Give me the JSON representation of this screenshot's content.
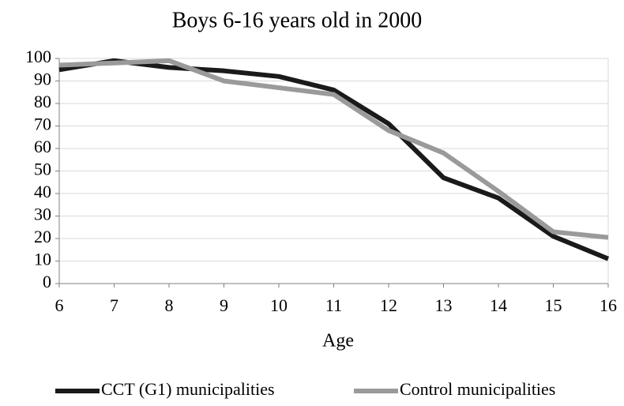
{
  "chart_data": {
    "type": "line",
    "title": "Boys 6-16 years old in 2000",
    "x_label": "Age",
    "x": [
      6,
      7,
      8,
      9,
      10,
      11,
      12,
      13,
      14,
      15,
      16
    ],
    "xlim": [
      6,
      16
    ],
    "xticks": [
      6,
      7,
      8,
      9,
      10,
      11,
      12,
      13,
      14,
      15,
      16
    ],
    "ylim": [
      0,
      100
    ],
    "yticks": [
      0,
      10,
      20,
      30,
      40,
      50,
      60,
      70,
      80,
      90,
      100
    ],
    "grid": true,
    "legend": "bottom",
    "series": [
      {
        "name": "CCT (G1) municipalities",
        "color": "#1a1a1a",
        "values": [
          95,
          99,
          96,
          94.5,
          92,
          86,
          71,
          47,
          38,
          21,
          11
        ]
      },
      {
        "name": "Control municipalities",
        "color": "#9a9a9a",
        "values": [
          97,
          98,
          99,
          90,
          87,
          84,
          68,
          58,
          41,
          23,
          20.5
        ]
      }
    ]
  }
}
